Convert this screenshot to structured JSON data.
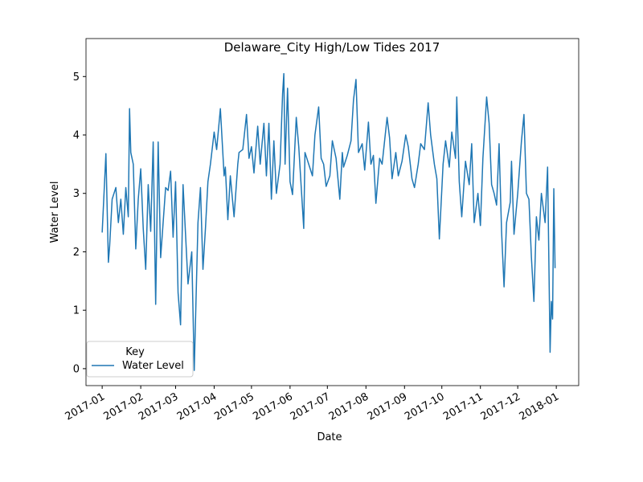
{
  "chart_data": {
    "type": "line",
    "title": "Delaware_City High/Low Tides 2017",
    "xlabel": "Date",
    "ylabel": "Water Level",
    "legend_title": "Key",
    "legend": "lower left",
    "xlim": [
      "2016-12-19",
      "2018-01-19"
    ],
    "xticks": [
      {
        "value": "2017-01-01",
        "label": "2017-01"
      },
      {
        "value": "2017-02-01",
        "label": "2017-02"
      },
      {
        "value": "2017-03-01",
        "label": "2017-03"
      },
      {
        "value": "2017-04-01",
        "label": "2017-04"
      },
      {
        "value": "2017-05-01",
        "label": "2017-05"
      },
      {
        "value": "2017-06-01",
        "label": "2017-06"
      },
      {
        "value": "2017-07-01",
        "label": "2017-07"
      },
      {
        "value": "2017-08-01",
        "label": "2017-08"
      },
      {
        "value": "2017-09-01",
        "label": "2017-09"
      },
      {
        "value": "2017-10-01",
        "label": "2017-10"
      },
      {
        "value": "2017-11-01",
        "label": "2017-11"
      },
      {
        "value": "2017-12-01",
        "label": "2017-12"
      },
      {
        "value": "2018-01-01",
        "label": "2018-01"
      }
    ],
    "ylim": [
      -0.29,
      5.65
    ],
    "yticks": [
      0,
      1,
      2,
      3,
      4,
      5
    ],
    "x": [
      "2017-01-01",
      "2017-01-04",
      "2017-01-06",
      "2017-01-07",
      "2017-01-09",
      "2017-01-12",
      "2017-01-14",
      "2017-01-16",
      "2017-01-18",
      "2017-01-20",
      "2017-01-22",
      "2017-01-23",
      "2017-01-24",
      "2017-01-26",
      "2017-01-28",
      "2017-01-30",
      "2017-02-01",
      "2017-02-03",
      "2017-02-05",
      "2017-02-07",
      "2017-02-09",
      "2017-02-11",
      "2017-02-13",
      "2017-02-15",
      "2017-02-17",
      "2017-02-19",
      "2017-02-21",
      "2017-02-23",
      "2017-02-25",
      "2017-02-27",
      "2017-03-01",
      "2017-03-03",
      "2017-03-05",
      "2017-03-07",
      "2017-03-09",
      "2017-03-11",
      "2017-03-14",
      "2017-03-16",
      "2017-03-19",
      "2017-03-21",
      "2017-03-23",
      "2017-03-25",
      "2017-03-27",
      "2017-03-29",
      "2017-04-01",
      "2017-04-03",
      "2017-04-06",
      "2017-04-09",
      "2017-04-10",
      "2017-04-12",
      "2017-04-14",
      "2017-04-17",
      "2017-04-20",
      "2017-04-21",
      "2017-04-24",
      "2017-04-27",
      "2017-04-29",
      "2017-05-01",
      "2017-05-03",
      "2017-05-06",
      "2017-05-08",
      "2017-05-11",
      "2017-05-13",
      "2017-05-15",
      "2017-05-17",
      "2017-05-19",
      "2017-05-21",
      "2017-05-24",
      "2017-05-26",
      "2017-05-27",
      "2017-05-28",
      "2017-05-30",
      "2017-06-01",
      "2017-06-03",
      "2017-06-06",
      "2017-06-08",
      "2017-06-12",
      "2017-06-13",
      "2017-06-16",
      "2017-06-19",
      "2017-06-21",
      "2017-06-24",
      "2017-06-26",
      "2017-06-28",
      "2017-06-30",
      "2017-07-03",
      "2017-07-05",
      "2017-07-08",
      "2017-07-11",
      "2017-07-13",
      "2017-07-14",
      "2017-07-17",
      "2017-07-20",
      "2017-07-22",
      "2017-07-24",
      "2017-07-26",
      "2017-07-29",
      "2017-07-31",
      "2017-08-03",
      "2017-08-05",
      "2017-08-07",
      "2017-08-09",
      "2017-08-12",
      "2017-08-14",
      "2017-08-18",
      "2017-08-20",
      "2017-08-22",
      "2017-08-25",
      "2017-08-27",
      "2017-08-30",
      "2017-09-02",
      "2017-09-04",
      "2017-09-07",
      "2017-09-09",
      "2017-09-12",
      "2017-09-14",
      "2017-09-17",
      "2017-09-20",
      "2017-09-22",
      "2017-09-25",
      "2017-09-27",
      "2017-09-29",
      "2017-10-02",
      "2017-10-04",
      "2017-10-07",
      "2017-10-09",
      "2017-10-12",
      "2017-10-13",
      "2017-10-15",
      "2017-10-17",
      "2017-10-20",
      "2017-10-23",
      "2017-10-25",
      "2017-10-27",
      "2017-10-30",
      "2017-11-01",
      "2017-11-03",
      "2017-11-06",
      "2017-11-08",
      "2017-11-10",
      "2017-11-12",
      "2017-11-14",
      "2017-11-16",
      "2017-11-18",
      "2017-11-20",
      "2017-11-22",
      "2017-11-25",
      "2017-11-26",
      "2017-11-28",
      "2017-12-01",
      "2017-12-04",
      "2017-12-06",
      "2017-12-08",
      "2017-12-10",
      "2017-12-12",
      "2017-12-14",
      "2017-12-16",
      "2017-12-18",
      "2017-12-20",
      "2017-12-23",
      "2017-12-25",
      "2017-12-27",
      "2017-12-28",
      "2017-12-29",
      "2017-12-30",
      "2017-12-31"
    ],
    "series": [
      {
        "name": "Water Level",
        "color": "#1f77b4",
        "values": [
          2.33,
          3.68,
          1.82,
          2.1,
          2.9,
          3.1,
          2.5,
          2.9,
          2.3,
          3.1,
          2.6,
          4.45,
          3.7,
          3.5,
          2.05,
          2.9,
          3.42,
          2.4,
          1.7,
          3.15,
          2.35,
          3.88,
          1.1,
          3.88,
          1.9,
          2.5,
          3.1,
          3.05,
          3.38,
          2.25,
          3.2,
          1.3,
          0.75,
          3.15,
          2.3,
          1.45,
          2.0,
          -0.03,
          2.5,
          3.1,
          1.7,
          2.4,
          3.2,
          3.5,
          4.05,
          3.75,
          4.45,
          3.3,
          3.45,
          2.55,
          3.3,
          2.6,
          3.5,
          3.7,
          3.75,
          4.35,
          3.6,
          3.8,
          3.35,
          4.15,
          3.5,
          4.2,
          3.3,
          4.2,
          2.9,
          3.9,
          3.0,
          3.5,
          4.7,
          5.05,
          3.5,
          4.8,
          3.2,
          2.98,
          4.3,
          3.8,
          2.4,
          3.7,
          3.5,
          3.3,
          4.0,
          4.48,
          3.6,
          3.5,
          3.12,
          3.3,
          3.9,
          3.6,
          2.9,
          3.7,
          3.45,
          3.65,
          3.9,
          4.6,
          4.95,
          3.7,
          3.85,
          3.4,
          4.22,
          3.5,
          3.65,
          2.83,
          3.6,
          3.5,
          4.3,
          3.95,
          3.25,
          3.7,
          3.3,
          3.55,
          4.0,
          3.8,
          3.25,
          3.1,
          3.5,
          3.85,
          3.75,
          4.55,
          4.0,
          3.5,
          3.25,
          2.22,
          3.5,
          3.9,
          3.45,
          4.05,
          3.6,
          4.65,
          3.2,
          2.6,
          3.55,
          3.15,
          3.85,
          2.5,
          3.0,
          2.45,
          3.6,
          4.65,
          4.2,
          3.15,
          3.0,
          2.8,
          3.85,
          2.35,
          1.4,
          2.5,
          2.85,
          3.55,
          2.3,
          3.0,
          3.9,
          4.35,
          3.0,
          2.9,
          1.9,
          1.15,
          2.6,
          2.2,
          3.0,
          2.5,
          3.45,
          0.28,
          1.15,
          0.85,
          3.08,
          1.72
        ]
      }
    ]
  }
}
